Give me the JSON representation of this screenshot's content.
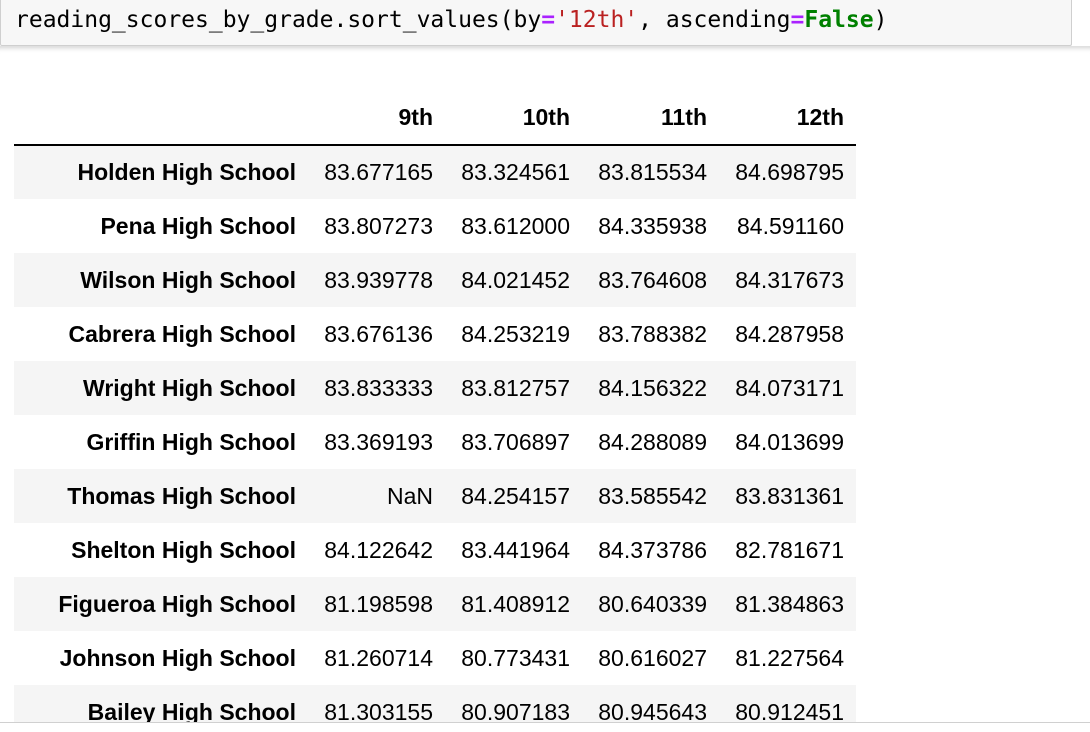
{
  "code": {
    "prefix": "reading_scores_by_grade.sort_values(by",
    "eq1": "=",
    "arg_string": "'12th'",
    "comma": ", ascending",
    "eq2": "=",
    "keyword": "False",
    "suffix": ")"
  },
  "table": {
    "columns": [
      "9th",
      "10th",
      "11th",
      "12th"
    ],
    "rows": [
      {
        "school": "Holden High School",
        "values": [
          "83.677165",
          "83.324561",
          "83.815534",
          "84.698795"
        ]
      },
      {
        "school": "Pena High School",
        "values": [
          "83.807273",
          "83.612000",
          "84.335938",
          "84.591160"
        ]
      },
      {
        "school": "Wilson High School",
        "values": [
          "83.939778",
          "84.021452",
          "83.764608",
          "84.317673"
        ]
      },
      {
        "school": "Cabrera High School",
        "values": [
          "83.676136",
          "84.253219",
          "83.788382",
          "84.287958"
        ]
      },
      {
        "school": "Wright High School",
        "values": [
          "83.833333",
          "83.812757",
          "84.156322",
          "84.073171"
        ]
      },
      {
        "school": "Griffin High School",
        "values": [
          "83.369193",
          "83.706897",
          "84.288089",
          "84.013699"
        ]
      },
      {
        "school": "Thomas High School",
        "values": [
          "NaN",
          "84.254157",
          "83.585542",
          "83.831361"
        ]
      },
      {
        "school": "Shelton High School",
        "values": [
          "84.122642",
          "83.441964",
          "84.373786",
          "82.781671"
        ]
      },
      {
        "school": "Figueroa High School",
        "values": [
          "81.198598",
          "81.408912",
          "80.640339",
          "81.384863"
        ]
      },
      {
        "school": "Johnson High School",
        "values": [
          "81.260714",
          "80.773431",
          "80.616027",
          "81.227564"
        ]
      },
      {
        "school": "Bailey High School",
        "values": [
          "81.303155",
          "80.907183",
          "80.945643",
          "80.912451"
        ]
      }
    ]
  }
}
